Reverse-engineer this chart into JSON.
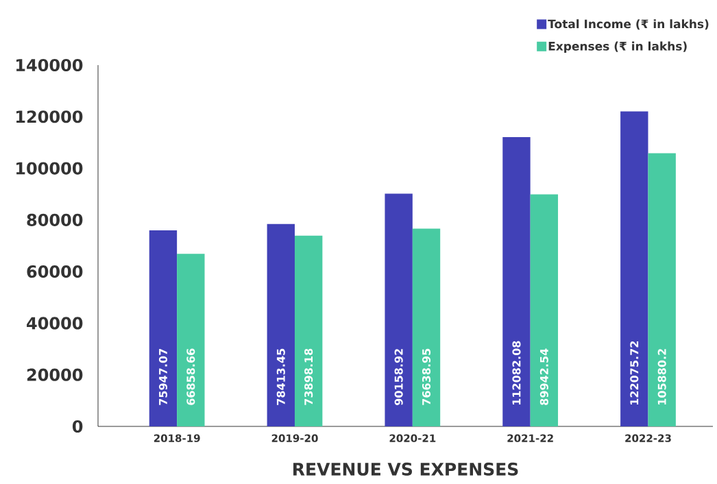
{
  "chart_data": {
    "type": "bar",
    "title": "REVENUE VS EXPENSES",
    "categories": [
      "2018-19",
      "2019-20",
      "2020-21",
      "2021-22",
      "2022-23"
    ],
    "series": [
      {
        "name": "Total Income (₹ in lakhs)",
        "color": "#4141b7",
        "values": [
          75947.07,
          78413.45,
          90158.92,
          112082.08,
          122075.72
        ]
      },
      {
        "name": "Expenses (₹ in lakhs)",
        "color": "#48cba2",
        "values": [
          66858.66,
          73898.18,
          76638.95,
          89942.54,
          105880.2
        ]
      }
    ],
    "ylim": [
      0,
      140000
    ],
    "yticks": [
      0,
      20000,
      40000,
      60000,
      80000,
      100000,
      120000,
      140000
    ],
    "data_labels": true,
    "legend": "top right"
  }
}
